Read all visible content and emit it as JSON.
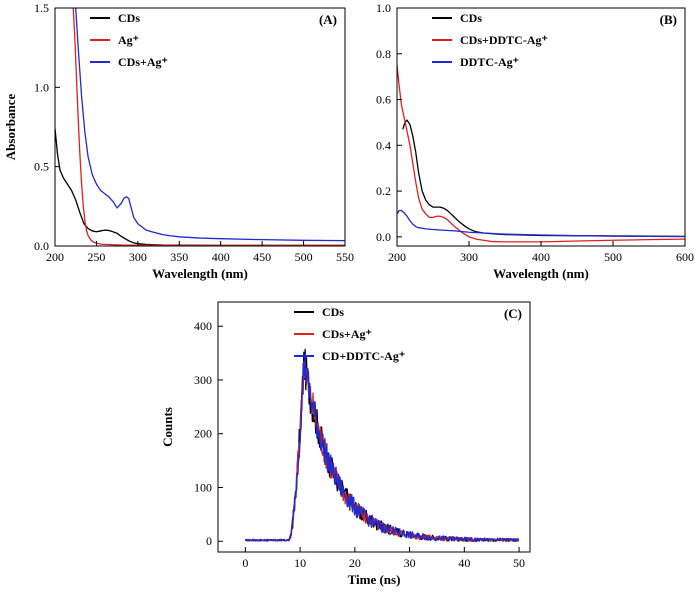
{
  "chart_data": [
    {
      "id": "A",
      "type": "line",
      "panel_label": "(A)",
      "xlabel": "Wavelength (nm)",
      "ylabel": "Absorbance",
      "xlim": [
        200,
        550
      ],
      "ylim": [
        0,
        1.5
      ],
      "xticks": [
        "200",
        "250",
        "300",
        "350",
        "400",
        "450",
        "500",
        "550"
      ],
      "yticks": [
        "0.0",
        "0.5",
        "1.0",
        "1.5"
      ],
      "legend_position": "top-left",
      "series": [
        {
          "name": "CDs",
          "color": "#000000",
          "x": [
            200,
            203,
            206,
            210,
            215,
            220,
            225,
            230,
            235,
            240,
            245,
            250,
            255,
            260,
            265,
            270,
            275,
            280,
            285,
            290,
            295,
            300,
            310,
            320,
            330,
            350,
            400,
            450,
            500,
            550
          ],
          "y": [
            0.74,
            0.58,
            0.48,
            0.43,
            0.39,
            0.35,
            0.29,
            0.21,
            0.14,
            0.11,
            0.095,
            0.09,
            0.095,
            0.1,
            0.098,
            0.09,
            0.08,
            0.06,
            0.045,
            0.03,
            0.02,
            0.015,
            0.01,
            0.008,
            0.006,
            0.005,
            0.004,
            0.004,
            0.004,
            0.004
          ]
        },
        {
          "name": "Ag⁺",
          "color": "#e0211e",
          "x": [
            222,
            224,
            226,
            228,
            230,
            232,
            234,
            236,
            238,
            240,
            243,
            246,
            250,
            255,
            260,
            270,
            280,
            300,
            350,
            400,
            450,
            500,
            550
          ],
          "y": [
            1.5,
            1.3,
            1.05,
            0.8,
            0.58,
            0.4,
            0.26,
            0.16,
            0.1,
            0.065,
            0.04,
            0.025,
            0.018,
            0.012,
            0.01,
            0.008,
            0.006,
            0.005,
            0.004,
            0.004,
            0.004,
            0.004,
            0.004
          ]
        },
        {
          "name": "CDs+Ag⁺",
          "color": "#1f2ad1",
          "x": [
            225,
            228,
            232,
            236,
            240,
            245,
            250,
            255,
            260,
            265,
            270,
            275,
            280,
            283,
            286,
            289,
            292,
            295,
            300,
            305,
            310,
            320,
            330,
            340,
            350,
            375,
            400,
            450,
            500,
            550
          ],
          "y": [
            1.5,
            1.25,
            0.95,
            0.72,
            0.56,
            0.45,
            0.39,
            0.35,
            0.33,
            0.31,
            0.28,
            0.24,
            0.27,
            0.3,
            0.31,
            0.3,
            0.24,
            0.18,
            0.14,
            0.12,
            0.1,
            0.085,
            0.072,
            0.064,
            0.058,
            0.05,
            0.046,
            0.04,
            0.036,
            0.034
          ]
        }
      ]
    },
    {
      "id": "B",
      "type": "line",
      "panel_label": "(B)",
      "xlabel": "Wavelength (nm)",
      "ylabel": "",
      "xlim": [
        200,
        600
      ],
      "ylim": [
        -0.04,
        1.0
      ],
      "xticks": [
        "200",
        "300",
        "400",
        "500",
        "600"
      ],
      "yticks": [
        "0.0",
        "0.2",
        "0.4",
        "0.6",
        "0.8",
        "1.0"
      ],
      "legend_position": "top-left",
      "series": [
        {
          "name": "CDs",
          "color": "#000000",
          "x": [
            208,
            211,
            214,
            218,
            222,
            226,
            230,
            235,
            240,
            245,
            250,
            255,
            260,
            265,
            270,
            275,
            280,
            285,
            290,
            295,
            300,
            305,
            310,
            320,
            330,
            350,
            400,
            450,
            500,
            550,
            600
          ],
          "y": [
            0.47,
            0.5,
            0.51,
            0.49,
            0.44,
            0.37,
            0.28,
            0.2,
            0.16,
            0.14,
            0.13,
            0.13,
            0.13,
            0.125,
            0.115,
            0.1,
            0.085,
            0.07,
            0.057,
            0.045,
            0.035,
            0.028,
            0.022,
            0.017,
            0.014,
            0.01,
            0.006,
            0.005,
            0.004,
            0.003,
            0.002
          ]
        },
        {
          "name": "CDs+DDTC-Ag⁺",
          "color": "#e0211e",
          "x": [
            200,
            203,
            206,
            210,
            214,
            218,
            222,
            226,
            230,
            235,
            240,
            245,
            250,
            255,
            260,
            265,
            270,
            275,
            280,
            290,
            300,
            310,
            320,
            330,
            350,
            400,
            450,
            500,
            550,
            600
          ],
          "y": [
            0.75,
            0.66,
            0.58,
            0.52,
            0.46,
            0.4,
            0.32,
            0.24,
            0.17,
            0.12,
            0.1,
            0.085,
            0.085,
            0.09,
            0.09,
            0.085,
            0.075,
            0.06,
            0.045,
            0.02,
            0.0,
            -0.01,
            -0.015,
            -0.02,
            -0.022,
            -0.022,
            -0.018,
            -0.015,
            -0.012,
            -0.01
          ]
        },
        {
          "name": "DDTC-Ag⁺",
          "color": "#1f2ad1",
          "x": [
            200,
            203,
            206,
            210,
            214,
            218,
            222,
            226,
            230,
            240,
            250,
            260,
            280,
            300,
            350,
            400,
            450,
            500,
            550,
            600
          ],
          "y": [
            0.1,
            0.115,
            0.115,
            0.105,
            0.09,
            0.07,
            0.055,
            0.045,
            0.04,
            0.035,
            0.032,
            0.03,
            0.026,
            0.02,
            0.012,
            0.008,
            0.005,
            0.003,
            0.002,
            0.001
          ]
        }
      ]
    },
    {
      "id": "C",
      "type": "line",
      "panel_label": "(C)",
      "xlabel": "Time (ns)",
      "ylabel": "Counts",
      "xlim": [
        -5,
        52
      ],
      "ylim": [
        -20,
        445
      ],
      "xticks": [
        "0",
        "10",
        "20",
        "30",
        "40",
        "50"
      ],
      "yticks": [
        "0",
        "100",
        "200",
        "300",
        "400"
      ],
      "legend_position": "top-center",
      "decay_model": {
        "baseline": 2,
        "onset_ns": 8,
        "peak_ns": 10.7,
        "peak_counts": 335,
        "decay_tau_ns": 5.5
      },
      "series": [
        {
          "name": "CDs",
          "color": "#000000"
        },
        {
          "name": "CDs+Ag⁺",
          "color": "#e0211e"
        },
        {
          "name": "CD+DDTC-Ag⁺",
          "color": "#1f2ad1"
        }
      ]
    }
  ]
}
